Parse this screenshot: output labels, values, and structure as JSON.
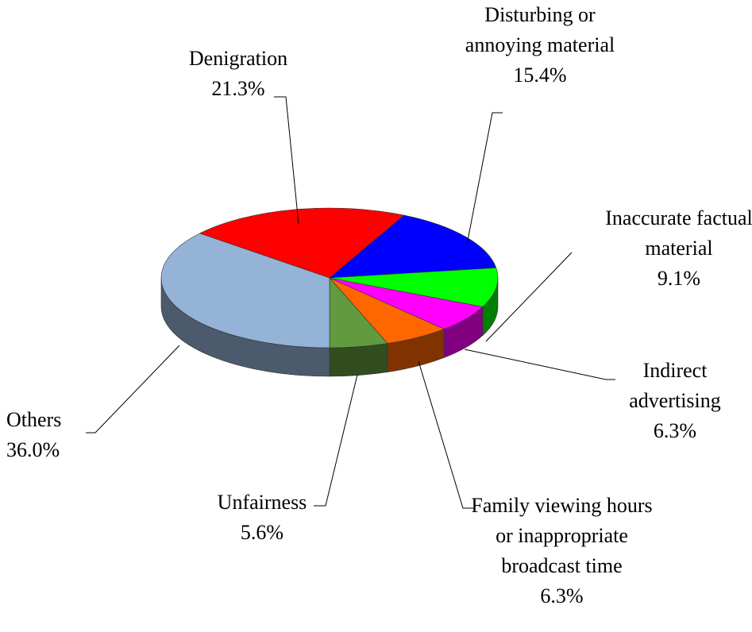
{
  "chart_data": {
    "type": "pie",
    "categories": [
      "Denigration",
      "Disturbing or annoying material",
      "Inaccurate factual material",
      "Indirect advertising",
      "Family viewing hours or inappropriate broadcast time",
      "Unfairness",
      "Others"
    ],
    "values": [
      21.3,
      15.4,
      9.1,
      6.3,
      6.3,
      5.6,
      36.0
    ],
    "value_labels": [
      "21.3%",
      "15.4%",
      "9.1%",
      "6.3%",
      "6.3%",
      "5.6%",
      "36.0%"
    ],
    "colors": [
      "#ff0000",
      "#0000ff",
      "#00ff00",
      "#ff00ff",
      "#ff6600",
      "#629a3f",
      "#95b3d7"
    ]
  }
}
